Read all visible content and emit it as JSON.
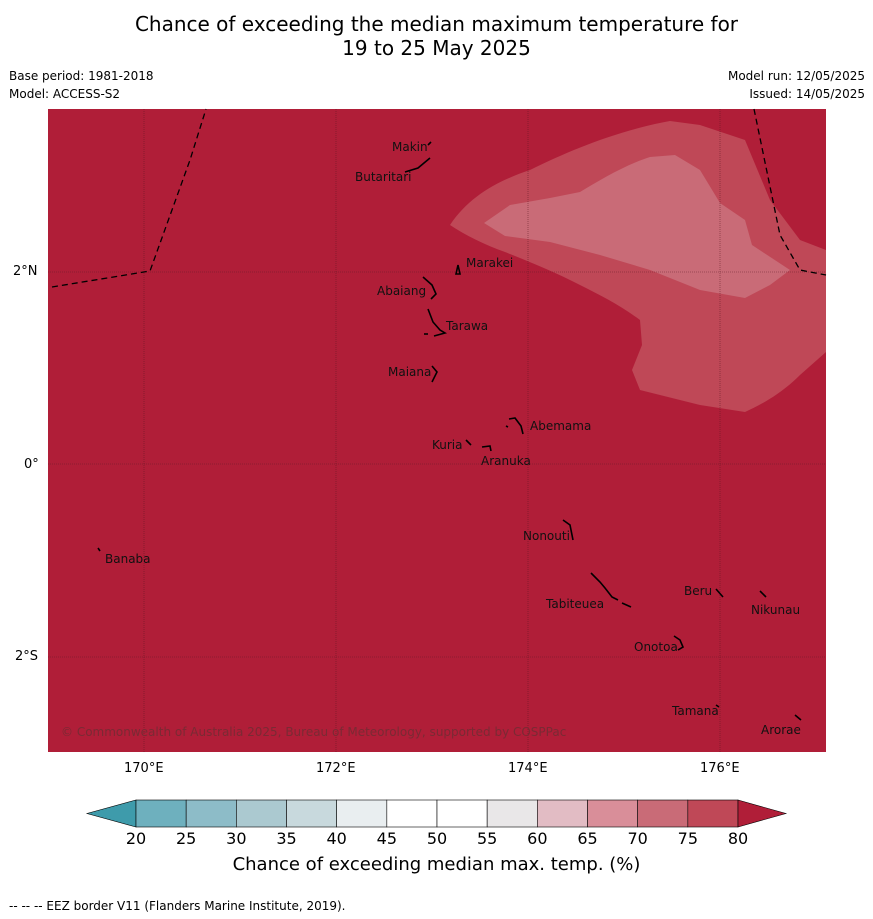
{
  "title_line1": "Chance of exceeding the median maximum temperature for",
  "title_line2": "19 to 25 May 2025",
  "base_period": "Base period: 1981-2018",
  "model": "Model: ACCESS-S2",
  "model_run": "Model run: 12/05/2025",
  "issued": "Issued: 14/05/2025",
  "copyright": "© Commonwealth of Australia 2025, Bureau of Meteorology, supported by COSPPac",
  "x_ticks": [
    "170°E",
    "172°E",
    "174°E",
    "176°E"
  ],
  "y_ticks": [
    "2°N",
    "0°",
    "2°S"
  ],
  "places": [
    "Makin",
    "Butaritari",
    "Marakei",
    "Abaiang",
    "Tarawa",
    "Maiana",
    "Abemama",
    "Kuria",
    "Aranuka",
    "Nonouti",
    "Banaba",
    "Beru",
    "Nikunau",
    "Tabiteuea",
    "Onotoa",
    "Tamana",
    "Arorae"
  ],
  "colorbar": {
    "title": "Chance of exceeding median max. temp. (%)",
    "ticks": [
      "20",
      "25",
      "30",
      "35",
      "40",
      "45",
      "50",
      "55",
      "60",
      "65",
      "70",
      "75",
      "80"
    ],
    "colors": [
      "#3e9bab",
      "#6eb0be",
      "#8dbcc8",
      "#abc9d0",
      "#c8d9dd",
      "#e9eef0",
      "#ffffff",
      "#ffffff",
      "#e9e7e8",
      "#e2bcc4",
      "#d98e99",
      "#c96b77",
      "#bf4857",
      "#b01e38"
    ]
  },
  "footer": "--  --  -- EEZ border V11 (Flanders Marine Institute, 2019)."
}
